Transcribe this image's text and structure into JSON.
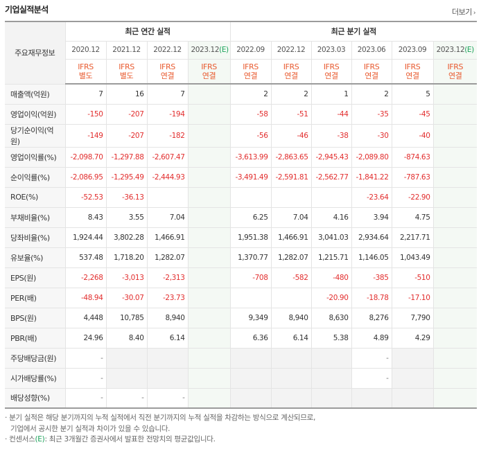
{
  "title": "기업실적분석",
  "more_label": "더보기",
  "header": {
    "row_label": "주요재무정보",
    "annual_group": "최근 연간 실적",
    "quarter_group": "최근 분기 실적"
  },
  "periods": [
    {
      "label": "2020.12",
      "std1": "IFRS",
      "std2": "별도"
    },
    {
      "label": "2021.12",
      "std1": "IFRS",
      "std2": "별도"
    },
    {
      "label": "2022.12",
      "std1": "IFRS",
      "std2": "연결"
    },
    {
      "label": "2023.12",
      "est": "(E)",
      "std1": "IFRS",
      "std2": "연결"
    },
    {
      "label": "2022.09",
      "std1": "IFRS",
      "std2": "연결"
    },
    {
      "label": "2022.12",
      "std1": "IFRS",
      "std2": "연결"
    },
    {
      "label": "2023.03",
      "std1": "IFRS",
      "std2": "연결"
    },
    {
      "label": "2023.06",
      "std1": "IFRS",
      "std2": "연결"
    },
    {
      "label": "2023.09",
      "std1": "IFRS",
      "std2": "연결"
    },
    {
      "label": "2023.12",
      "est": "(E)",
      "std1": "IFRS",
      "std2": "연결"
    }
  ],
  "rows": [
    {
      "label": "매출액(억원)",
      "values": [
        "7",
        "16",
        "7",
        "",
        "2",
        "2",
        "1",
        "2",
        "5",
        ""
      ]
    },
    {
      "label": "영업이익(억원)",
      "values": [
        "-150",
        "-207",
        "-194",
        "",
        "-58",
        "-51",
        "-44",
        "-35",
        "-45",
        ""
      ]
    },
    {
      "label": "당기순이익(억원)",
      "values": [
        "-149",
        "-207",
        "-182",
        "",
        "-56",
        "-46",
        "-38",
        "-30",
        "-40",
        ""
      ]
    },
    {
      "label": "영업이익률(%)",
      "values": [
        "-2,098.70",
        "-1,297.88",
        "-2,607.47",
        "",
        "-3,613.99",
        "-2,863.65",
        "-2,945.43",
        "-2,089.80",
        "-874.63",
        ""
      ]
    },
    {
      "label": "순이익률(%)",
      "values": [
        "-2,086.95",
        "-1,295.49",
        "-2,444.93",
        "",
        "-3,491.49",
        "-2,591.81",
        "-2,562.77",
        "-1,841.22",
        "-787.63",
        ""
      ]
    },
    {
      "label": "ROE(%)",
      "values": [
        "-52.53",
        "-36.13",
        "",
        "",
        "",
        "",
        "",
        "-23.64",
        "-22.90",
        ""
      ]
    },
    {
      "label": "부채비율(%)",
      "values": [
        "8.43",
        "3.55",
        "7.04",
        "",
        "6.25",
        "7.04",
        "4.16",
        "3.94",
        "4.75",
        ""
      ]
    },
    {
      "label": "당좌비율(%)",
      "values": [
        "1,924.44",
        "3,802.28",
        "1,466.91",
        "",
        "1,951.38",
        "1,466.91",
        "3,041.03",
        "2,934.64",
        "2,217.71",
        ""
      ]
    },
    {
      "label": "유보율(%)",
      "values": [
        "537.48",
        "1,718.20",
        "1,282.07",
        "",
        "1,370.77",
        "1,282.07",
        "1,215.71",
        "1,146.05",
        "1,043.49",
        ""
      ]
    },
    {
      "label": "EPS(원)",
      "values": [
        "-2,268",
        "-3,013",
        "-2,313",
        "",
        "-708",
        "-582",
        "-480",
        "-385",
        "-510",
        ""
      ]
    },
    {
      "label": "PER(배)",
      "values": [
        "-48.94",
        "-30.07",
        "-23.73",
        "",
        "",
        "",
        "-20.90",
        "-18.78",
        "-17.10",
        ""
      ]
    },
    {
      "label": "BPS(원)",
      "values": [
        "4,448",
        "10,785",
        "8,940",
        "",
        "9,349",
        "8,940",
        "8,630",
        "8,276",
        "7,790",
        ""
      ]
    },
    {
      "label": "PBR(배)",
      "values": [
        "24.96",
        "8.40",
        "6.14",
        "",
        "6.36",
        "6.14",
        "5.38",
        "4.89",
        "4.29",
        ""
      ]
    },
    {
      "label": "주당배당금(원)",
      "values": [
        "-",
        "",
        "",
        "",
        "",
        "",
        "",
        "-",
        "",
        ""
      ]
    },
    {
      "label": "시가배당률(%)",
      "values": [
        "-",
        "",
        "",
        "",
        "",
        "",
        "",
        "-",
        "",
        ""
      ]
    },
    {
      "label": "배당성향(%)",
      "values": [
        "-",
        "-",
        "-",
        "",
        "",
        "",
        "",
        "",
        "",
        ""
      ]
    }
  ],
  "notes": {
    "line1": "· 분기 실적은 해당 분기까지의 누적 실적에서 직전 분기까지의 누적 실적을 차감하는 방식으로 계산되므로,",
    "line2": "기업에서 공시한 분기 실적과 차이가 있을 수 있습니다.",
    "line3_pre": "· 컨센서스",
    "line3_est": "(E)",
    "line3_post": ": 최근 3개월간 증권사에서 발표한 전망치의 평균값입니다."
  },
  "colors": {
    "ifrs": "#e85a2f",
    "negative": "#e22d2d",
    "estimate": "#1aa259"
  }
}
